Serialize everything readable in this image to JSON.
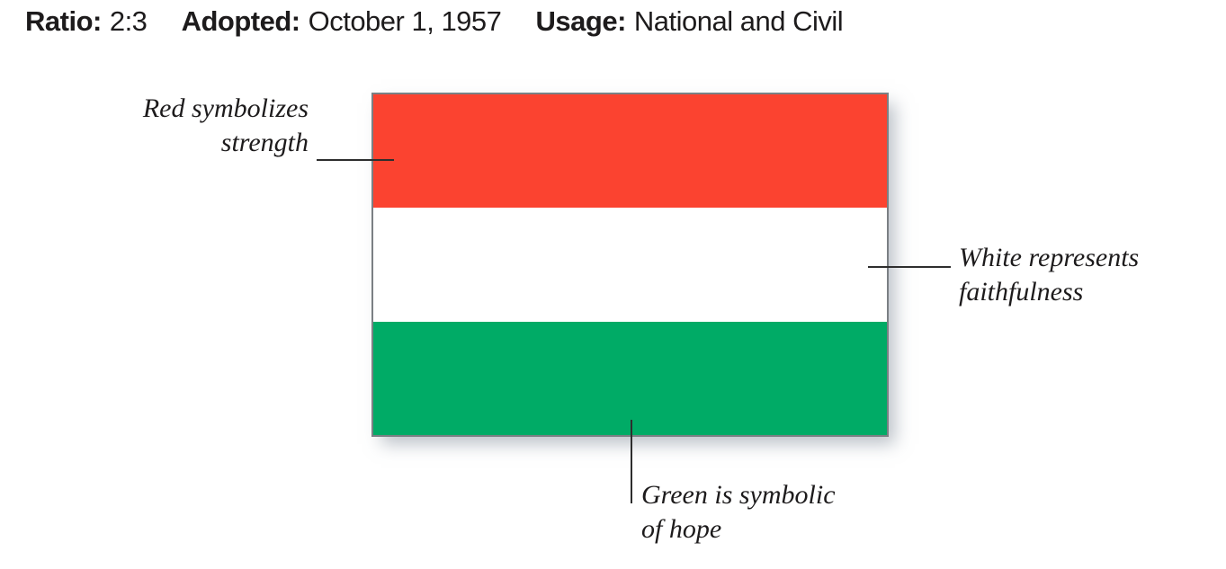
{
  "header": {
    "ratio_label": "Ratio:",
    "ratio_value": "2:3",
    "adopted_label": "Adopted:",
    "adopted_value": "October 1, 1957",
    "usage_label": "Usage:",
    "usage_value": "National and Civil"
  },
  "flag": {
    "border_color": "#7b8084",
    "stripes": [
      {
        "name": "red-stripe",
        "color": "#fb4330"
      },
      {
        "name": "white-stripe",
        "color": "#ffffff"
      },
      {
        "name": "green-stripe",
        "color": "#00ab66"
      }
    ]
  },
  "annotations": {
    "red": {
      "line1": "Red symbolizes",
      "line2": "strength"
    },
    "white": {
      "line1": "White represents",
      "line2": "faithfulness"
    },
    "green": {
      "line1": "Green is symbolic",
      "line2": "of hope"
    }
  },
  "colors": {
    "leader_line": "#2e2e2e",
    "text": "#1d1b1c"
  }
}
